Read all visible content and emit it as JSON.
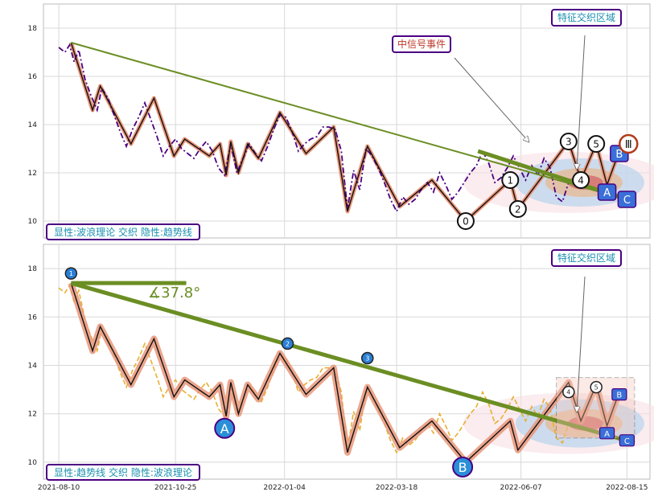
{
  "colors": {
    "trend": "#6b8e23",
    "wave_fill": "#e8967a",
    "wave_fill2": "#8fb0a8",
    "price_dash": "#4b0082",
    "price_dash_bottom": "#e8b030",
    "badge_blue": "#3a6fd8",
    "badge_border": "#4b0082",
    "label_text": "#1a8fb0",
    "event_text": "#c0392b",
    "grid": "#d8d8d8"
  },
  "chart_data": [
    {
      "type": "line",
      "panel": "top",
      "ylim": [
        9.3,
        19.0
      ],
      "yticks": [
        10,
        12,
        14,
        16,
        18
      ],
      "price": [
        [
          "2021-08-10",
          17.2
        ],
        [
          "2021-08-14",
          17.0
        ],
        [
          "2021-08-17",
          17.3
        ],
        [
          "2021-08-20",
          16.6
        ],
        [
          "2021-08-23",
          17.1
        ],
        [
          "2021-08-27",
          15.9
        ],
        [
          "2021-08-31",
          15.2
        ],
        [
          "2021-09-04",
          14.6
        ],
        [
          "2021-09-07",
          15.5
        ],
        [
          "2021-09-11",
          15.1
        ],
        [
          "2021-09-15",
          14.4
        ],
        [
          "2021-09-19",
          13.7
        ],
        [
          "2021-09-23",
          13.1
        ],
        [
          "2021-09-27",
          13.8
        ],
        [
          "2021-10-01",
          14.3
        ],
        [
          "2021-10-05",
          14.9
        ],
        [
          "2021-10-09",
          14.2
        ],
        [
          "2021-10-13",
          13.5
        ],
        [
          "2021-10-17",
          12.7
        ],
        [
          "2021-10-21",
          13.1
        ],
        [
          "2021-10-25",
          13.4
        ],
        [
          "2021-10-29",
          13.0
        ],
        [
          "2021-11-02",
          12.8
        ],
        [
          "2021-11-06",
          12.6
        ],
        [
          "2021-11-10",
          13.0
        ],
        [
          "2021-11-14",
          13.3
        ],
        [
          "2021-11-18",
          12.9
        ],
        [
          "2021-11-22",
          12.2
        ],
        [
          "2021-11-26",
          11.9
        ],
        [
          "2021-11-30",
          13.2
        ],
        [
          "2021-12-04",
          12.0
        ],
        [
          "2021-12-08",
          12.6
        ],
        [
          "2021-12-12",
          13.2
        ],
        [
          "2021-12-16",
          12.8
        ],
        [
          "2021-12-20",
          12.5
        ],
        [
          "2021-12-24",
          13.1
        ],
        [
          "2021-12-28",
          13.8
        ],
        [
          "2022-01-01",
          14.4
        ],
        [
          "2022-01-05",
          14.3
        ],
        [
          "2022-01-09",
          13.7
        ],
        [
          "2022-01-13",
          12.9
        ],
        [
          "2022-01-17",
          13.2
        ],
        [
          "2022-01-21",
          13.4
        ],
        [
          "2022-01-25",
          13.5
        ],
        [
          "2022-01-29",
          13.9
        ],
        [
          "2022-02-02",
          13.9
        ],
        [
          "2022-02-06",
          13.8
        ],
        [
          "2022-02-10",
          12.9
        ],
        [
          "2022-02-14",
          10.5
        ],
        [
          "2022-02-18",
          12.1
        ],
        [
          "2022-02-22",
          11.3
        ],
        [
          "2022-02-26",
          13.0
        ],
        [
          "2022-03-02",
          12.7
        ],
        [
          "2022-03-06",
          12.2
        ],
        [
          "2022-03-10",
          11.6
        ],
        [
          "2022-03-14",
          10.9
        ],
        [
          "2022-03-18",
          10.4
        ],
        [
          "2022-03-22",
          11.0
        ],
        [
          "2022-03-26",
          10.7
        ],
        [
          "2022-03-30",
          10.9
        ],
        [
          "2022-04-03",
          11.3
        ],
        [
          "2022-04-07",
          11.6
        ],
        [
          "2022-04-11",
          11.2
        ],
        [
          "2022-04-15",
          12.0
        ],
        [
          "2022-04-19",
          11.5
        ],
        [
          "2022-04-23",
          10.9
        ],
        [
          "2022-04-27",
          11.2
        ],
        [
          "2022-05-01",
          11.6
        ],
        [
          "2022-05-05",
          12.0
        ],
        [
          "2022-05-09",
          12.3
        ],
        [
          "2022-05-13",
          12.9
        ],
        [
          "2022-05-17",
          12.4
        ],
        [
          "2022-05-21",
          11.6
        ],
        [
          "2022-05-25",
          11.8
        ],
        [
          "2022-05-29",
          12.2
        ],
        [
          "2022-06-02",
          12.7
        ],
        [
          "2022-06-06",
          12.2
        ],
        [
          "2022-06-10",
          11.7
        ],
        [
          "2022-06-14",
          12.3
        ],
        [
          "2022-06-18",
          11.9
        ],
        [
          "2022-06-22",
          12.6
        ],
        [
          "2022-06-26",
          12.2
        ],
        [
          "2022-06-30",
          11.0
        ],
        [
          "2022-07-04",
          10.8
        ],
        [
          "2022-07-08",
          11.6
        ]
      ],
      "trend_line": [
        [
          "2021-08-18",
          17.4
        ],
        [
          "2022-08-20",
          10.8
        ]
      ],
      "wave_path": [
        [
          "2021-08-18",
          17.4
        ],
        [
          "2021-09-01",
          14.6
        ],
        [
          "2021-09-06",
          15.6
        ],
        [
          "2021-09-26",
          13.2
        ],
        [
          "2021-10-11",
          15.1
        ],
        [
          "2021-10-24",
          12.7
        ],
        [
          "2021-10-31",
          13.4
        ],
        [
          "2021-11-16",
          12.7
        ],
        [
          "2021-11-23",
          13.2
        ],
        [
          "2021-11-27",
          11.9
        ],
        [
          "2021-11-30",
          13.3
        ],
        [
          "2021-12-05",
          12.0
        ],
        [
          "2021-12-11",
          13.2
        ],
        [
          "2021-12-18",
          12.6
        ],
        [
          "2022-01-01",
          14.5
        ],
        [
          "2022-01-18",
          12.8
        ],
        [
          "2022-02-05",
          13.9
        ],
        [
          "2022-02-14",
          10.4
        ],
        [
          "2022-02-27",
          13.1
        ],
        [
          "2022-03-20",
          10.6
        ],
        [
          "2022-04-10",
          11.7
        ],
        [
          "2022-05-02",
          10.0
        ],
        [
          "2022-05-31",
          11.7
        ],
        [
          "2022-06-05",
          10.5
        ],
        [
          "2022-07-08",
          13.3
        ],
        [
          "2022-07-16",
          11.7
        ],
        [
          "2022-07-26",
          13.2
        ],
        [
          "2022-08-02",
          11.5
        ],
        [
          "2022-08-10",
          12.9
        ]
      ],
      "wave_points": [
        {
          "label": "0",
          "x": "2022-05-02",
          "y": 10.0
        },
        {
          "label": "1",
          "x": "2022-05-31",
          "y": 11.7
        },
        {
          "label": "2",
          "x": "2022-06-05",
          "y": 10.5
        },
        {
          "label": "3",
          "x": "2022-07-08",
          "y": 13.3
        },
        {
          "label": "4",
          "x": "2022-07-16",
          "y": 11.7
        },
        {
          "label": "5",
          "x": "2022-07-26",
          "y": 13.2
        }
      ],
      "abc_badges": [
        {
          "label": "A",
          "x": "2022-08-02",
          "y": 11.2
        },
        {
          "label": "B",
          "x": "2022-08-10",
          "y": 12.8
        },
        {
          "label": "C",
          "x": "2022-08-15",
          "y": 10.9
        }
      ],
      "roman_badge": {
        "label": "Ⅲ",
        "x": "2022-08-16",
        "y": 13.2
      },
      "event_label": "中信号事件",
      "zone_label": "特征交织区域",
      "caption": "显性:波浪理论 交织 隐性:趋势线"
    },
    {
      "type": "line",
      "panel": "bottom",
      "ylim": [
        9.3,
        19.0
      ],
      "yticks": [
        10,
        12,
        14,
        16,
        18
      ],
      "xticks": [
        "2021-08-10",
        "2021-10-25",
        "2022-01-04",
        "2022-03-18",
        "2022-06-07",
        "2022-08-15"
      ],
      "trend_line": [
        [
          "2021-08-18",
          17.4
        ],
        [
          "2022-08-20",
          10.8
        ]
      ],
      "angle_label": "∡37.8°",
      "pivot_points": [
        {
          "label": "1",
          "x": "2021-08-18",
          "y": 17.8,
          "color": "#2a7fd6"
        },
        {
          "label": "2",
          "x": "2022-01-06",
          "y": 14.9,
          "color": "#2a7fd6"
        },
        {
          "label": "3",
          "x": "2022-02-27",
          "y": 14.3,
          "color": "#2a7fd6"
        },
        {
          "label": "4",
          "x": "2022-07-08",
          "y": 12.9,
          "color": "#ffffff"
        },
        {
          "label": "5",
          "x": "2022-07-26",
          "y": 13.1,
          "color": "#ffffff"
        }
      ],
      "big_badges": [
        {
          "label": "A",
          "x": "2021-11-26",
          "y": 11.4
        },
        {
          "label": "B",
          "x": "2022-04-30",
          "y": 9.8
        }
      ],
      "abc_badges": [
        {
          "label": "A",
          "x": "2022-08-02",
          "y": 11.2
        },
        {
          "label": "B",
          "x": "2022-08-10",
          "y": 12.8
        },
        {
          "label": "C",
          "x": "2022-08-15",
          "y": 10.9
        }
      ],
      "zone_label": "特征交织区域",
      "caption": "显性:趋势线 交织 隐性:波浪理论"
    }
  ]
}
